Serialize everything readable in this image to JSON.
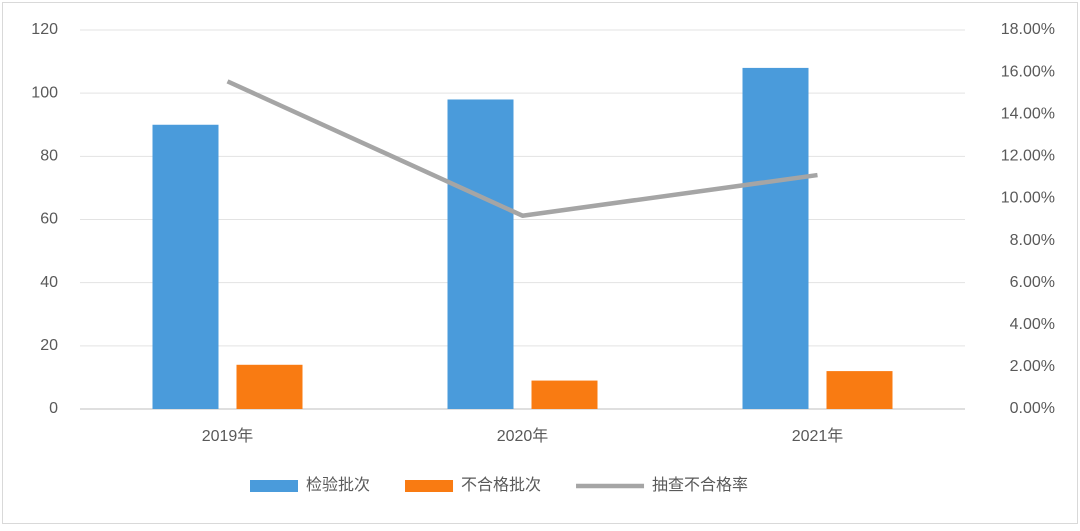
{
  "chart_data": {
    "type": "bar-line",
    "categories": [
      "2019年",
      "2020年",
      "2021年"
    ],
    "series": [
      {
        "name": "检验批次",
        "type": "bar",
        "color": "#4a9bdb",
        "values": [
          90,
          98,
          108
        ]
      },
      {
        "name": "不合格批次",
        "type": "bar",
        "color": "#f97b12",
        "values": [
          14,
          9,
          12
        ]
      },
      {
        "name": "抽查不合格率",
        "type": "line",
        "axis": "y2",
        "color": "#a5a5a5",
        "values": [
          15.56,
          9.18,
          11.11
        ]
      }
    ],
    "ylim": [
      0,
      120
    ],
    "yticks": [
      0,
      20,
      40,
      60,
      80,
      100,
      120
    ],
    "y2lim": [
      0,
      18
    ],
    "y2ticks": [
      {
        "value": 0,
        "label": "0.00%"
      },
      {
        "value": 2,
        "label": "2.00%"
      },
      {
        "value": 4,
        "label": "4.00%"
      },
      {
        "value": 6,
        "label": "6.00%"
      },
      {
        "value": 8,
        "label": "8.00%"
      },
      {
        "value": 10,
        "label": "10.00%"
      },
      {
        "value": 12,
        "label": "12.00%"
      },
      {
        "value": 14,
        "label": "14.00%"
      },
      {
        "value": 16,
        "label": "16.00%"
      },
      {
        "value": 18,
        "label": "18.00%"
      }
    ],
    "grid": true,
    "legend": "bottom"
  }
}
